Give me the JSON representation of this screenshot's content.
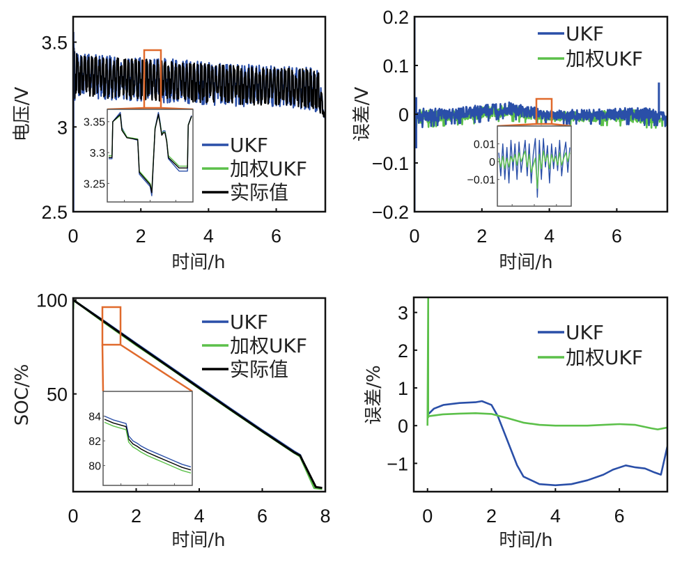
{
  "colors": {
    "ukf": "#2a4fa8",
    "weighted_ukf": "#5cc04a",
    "actual": "#000000",
    "zoom_box": "#e06a2c",
    "axis": "#111111",
    "inset_axis": "#555555"
  },
  "chart_data": [
    {
      "id": "voltage",
      "type": "line",
      "title": "",
      "xlabel": "时间/h",
      "ylabel": "电压/V",
      "xlim": [
        0,
        7.45
      ],
      "ylim": [
        2.5,
        3.65
      ],
      "xticks": [
        0,
        2,
        4,
        6
      ],
      "xtick_labels": [
        "0",
        "2",
        "4",
        "6"
      ],
      "yticks": [
        2.5,
        3,
        3.5
      ],
      "ytick_labels": [
        "2.5",
        "3",
        "3.5"
      ],
      "legend": {
        "placement": "center-right",
        "entries": [
          "UKF",
          "加权UKF",
          "实际值"
        ]
      },
      "series": [
        {
          "name": "UKF",
          "color_key": "ukf",
          "description": "pulse-discharge voltage band",
          "x": [
            0,
            0.05,
            0.1,
            1,
            2,
            3,
            4,
            5,
            6,
            7,
            7.25,
            7.45
          ],
          "upper": [
            3.56,
            3.45,
            3.44,
            3.42,
            3.41,
            3.4,
            3.38,
            3.37,
            3.36,
            3.35,
            3.33,
            3.05
          ],
          "lower": [
            2.5,
            3.15,
            3.18,
            3.16,
            3.15,
            3.14,
            3.13,
            3.12,
            3.12,
            3.1,
            3.08,
            3.05
          ]
        },
        {
          "name": "实际值",
          "color_key": "actual",
          "description": "pulse-discharge voltage band",
          "x": [
            0,
            0.05,
            0.1,
            1,
            2,
            3,
            4,
            5,
            6,
            7,
            7.25,
            7.45
          ],
          "upper": [
            3.52,
            3.44,
            3.43,
            3.41,
            3.4,
            3.39,
            3.37,
            3.36,
            3.35,
            3.34,
            3.32,
            3.05
          ],
          "lower": [
            3.2,
            3.16,
            3.19,
            3.17,
            3.16,
            3.15,
            3.14,
            3.13,
            3.13,
            3.11,
            3.09,
            3.05
          ]
        }
      ],
      "zoom_region": {
        "x": [
          2.15,
          2.6
        ],
        "y": [
          3.15,
          3.43
        ]
      },
      "inset": {
        "yticks": [
          3.25,
          3.3,
          3.35
        ],
        "ytick_labels": [
          "3.25",
          "3.3",
          "3.35"
        ],
        "ylim": [
          3.22,
          3.37
        ],
        "x": [
          0,
          0.04,
          0.05,
          0.14,
          0.16,
          0.2,
          0.22,
          0.35,
          0.37,
          0.5,
          0.52,
          0.56,
          0.6,
          0.62,
          0.64,
          0.66,
          0.68,
          0.7,
          0.72,
          0.85,
          0.87,
          0.95,
          0.96,
          1.0
        ],
        "series": [
          {
            "name": "UKF",
            "color_key": "ukf",
            "values": [
              3.29,
              3.29,
              3.35,
              3.365,
              3.34,
              3.33,
              3.325,
              3.32,
              3.265,
              3.245,
              3.23,
              3.34,
              3.365,
              3.35,
              3.33,
              3.335,
              3.335,
              3.32,
              3.29,
              3.27,
              3.27,
              3.27,
              3.345,
              3.36
            ]
          },
          {
            "name": "加权UKF",
            "color_key": "weighted_ukf",
            "values": [
              3.295,
              3.295,
              3.35,
              3.36,
              3.338,
              3.33,
              3.325,
              3.322,
              3.27,
              3.25,
              3.238,
              3.34,
              3.36,
              3.348,
              3.33,
              3.333,
              3.333,
              3.32,
              3.295,
              3.278,
              3.278,
              3.278,
              3.345,
              3.358
            ]
          },
          {
            "name": "实际值",
            "color_key": "actual",
            "values": [
              3.292,
              3.292,
              3.35,
              3.362,
              3.336,
              3.328,
              3.324,
              3.321,
              3.268,
              3.248,
              3.235,
              3.338,
              3.362,
              3.346,
              3.328,
              3.332,
              3.332,
              3.318,
              3.292,
              3.275,
              3.275,
              3.275,
              3.344,
              3.359
            ]
          }
        ]
      }
    },
    {
      "id": "voltage-error",
      "type": "line",
      "title": "",
      "xlabel": "时间/h",
      "ylabel": "误差/V",
      "xlim": [
        0,
        7.5
      ],
      "ylim": [
        -0.2,
        0.2
      ],
      "xticks": [
        0,
        2,
        4,
        6
      ],
      "xtick_labels": [
        "0",
        "2",
        "4",
        "6"
      ],
      "yticks": [
        -0.2,
        -0.1,
        0,
        0.1,
        0.2
      ],
      "ytick_labels": [
        "−0.2",
        "−0.1",
        "0",
        "0.1",
        "0.2"
      ],
      "legend": {
        "placement": "top-right",
        "entries": [
          "UKF",
          "加权UKF"
        ]
      },
      "series": [
        {
          "name": "加权UKF",
          "color_key": "weighted_ukf",
          "x": [
            0.1,
            1,
            2,
            2.7,
            3.5,
            4,
            5,
            6,
            7,
            7.2,
            7.4,
            7.5
          ],
          "upper": [
            0.01,
            0.005,
            0.015,
            0.02,
            0.01,
            0.005,
            0.005,
            0.008,
            0.01,
            0.0,
            0.0,
            -0.01
          ],
          "lower": [
            -0.02,
            -0.015,
            -0.01,
            -0.005,
            -0.01,
            -0.015,
            -0.015,
            -0.015,
            -0.02,
            -0.02,
            -0.015,
            -0.03
          ]
        },
        {
          "name": "UKF",
          "color_key": "ukf",
          "x": [
            0.1,
            1,
            2,
            2.7,
            3.5,
            4,
            5,
            6,
            7,
            7.2,
            7.4,
            7.5
          ],
          "upper": [
            0.015,
            0.01,
            0.02,
            0.028,
            0.015,
            0.008,
            0.01,
            0.012,
            0.015,
            0.005,
            0.005,
            -0.005
          ],
          "lower": [
            -0.02,
            -0.012,
            -0.008,
            0.0,
            -0.008,
            -0.012,
            -0.012,
            -0.012,
            -0.015,
            -0.015,
            -0.012,
            -0.025
          ]
        }
      ],
      "spikes": [
        {
          "name": "UKF",
          "color_key": "ukf",
          "x": 0.0,
          "y": [
            -0.2,
            0.2
          ]
        },
        {
          "name": "UKF",
          "color_key": "ukf",
          "x": 0.05,
          "y": [
            -0.07,
            0.035
          ]
        },
        {
          "name": "UKF",
          "color_key": "ukf",
          "x": 7.25,
          "y": [
            0.0,
            0.065
          ]
        }
      ],
      "zoom_region": {
        "x": [
          3.65,
          4.0
        ],
        "y": [
          -0.02,
          0.03
        ]
      },
      "inset": {
        "yticks": [
          -0.01,
          0,
          0.01
        ],
        "ytick_labels": [
          "−0.01",
          "0",
          "0.01"
        ],
        "ylim": [
          -0.025,
          0.02
        ],
        "series": [
          {
            "name": "UKF",
            "color_key": "ukf",
            "values": [
              0.005,
              -0.008,
              0.01,
              -0.01,
              0.008,
              -0.012,
              0.012,
              -0.005,
              0.01,
              -0.01,
              0.011,
              -0.006,
              0.003,
              0.012,
              -0.008,
              0.01,
              -0.012,
              0.004,
              0.013,
              -0.02,
              0.012,
              -0.01,
              0.013,
              -0.003,
              0.009,
              -0.012,
              0.01,
              -0.004,
              0.008,
              -0.005,
              0.012,
              -0.008,
              0.004,
              0.011,
              -0.006,
              0.008
            ]
          },
          {
            "name": "加权UKF",
            "color_key": "weighted_ukf",
            "values": [
              0.002,
              -0.003,
              0.003,
              -0.004,
              0.002,
              -0.003,
              0.003,
              0.0,
              0.004,
              -0.002,
              0.005,
              0.0,
              0.003,
              0.006,
              -0.003,
              0.004,
              -0.006,
              -0.002,
              0.002,
              -0.015,
              0.004,
              -0.004,
              0.006,
              0.0,
              0.004,
              -0.004,
              0.004,
              0.0,
              0.003,
              -0.002,
              0.005,
              -0.002,
              0.002,
              0.005,
              0.0,
              0.005
            ]
          }
        ]
      }
    },
    {
      "id": "soc",
      "type": "line",
      "title": "",
      "xlabel": "时间/h",
      "ylabel": "SOC/%",
      "xlim": [
        0,
        8
      ],
      "ylim": [
        -2,
        101
      ],
      "xticks": [
        0,
        2,
        4,
        6,
        8
      ],
      "xtick_labels": [
        "0",
        "2",
        "4",
        "6",
        "8"
      ],
      "yticks": [
        50,
        100
      ],
      "ytick_labels": [
        "50",
        "100"
      ],
      "legend": {
        "placement": "top-right",
        "entries": [
          "UKF",
          "加权UKF",
          "实际值"
        ]
      },
      "series": [
        {
          "name": "UKF",
          "color_key": "ukf",
          "x": [
            0,
            1,
            2,
            3,
            4,
            5,
            6,
            7,
            7.2,
            7.65,
            7.9
          ],
          "y": [
            100,
            88.5,
            76.8,
            65.2,
            53.6,
            42.0,
            30.6,
            19.5,
            17.5,
            0,
            0
          ]
        },
        {
          "name": "加权UKF",
          "color_key": "weighted_ukf",
          "x": [
            0,
            0.01,
            1,
            2,
            3,
            4,
            5,
            6,
            7,
            7.2,
            7.65,
            7.9
          ],
          "y": [
            95,
            100,
            87.8,
            76.0,
            64.6,
            53.0,
            41.4,
            30.0,
            18.8,
            16.8,
            0,
            -0.5
          ]
        },
        {
          "name": "实际值",
          "color_key": "actual",
          "x": [
            0,
            1,
            2,
            3,
            4,
            5,
            6,
            7,
            7.2,
            7.7,
            7.9
          ],
          "y": [
            100,
            88.2,
            76.4,
            64.8,
            53.2,
            41.6,
            30.2,
            19.0,
            17.2,
            0.5,
            0
          ]
        }
      ],
      "zoom_region": {
        "x": [
          1.0,
          1.5
        ],
        "y": [
          78,
          98
        ]
      },
      "inset": {
        "yticks": [
          80,
          82,
          84
        ],
        "ytick_labels": [
          "80",
          "82",
          "84"
        ],
        "ylim": [
          78.4,
          86
        ],
        "x": [
          0,
          0.1,
          0.2,
          0.25,
          0.28,
          0.33,
          0.38,
          0.42,
          0.5,
          0.6,
          0.7,
          0.8,
          0.9,
          1.0
        ],
        "series": [
          {
            "name": "UKF",
            "color_key": "ukf",
            "values": [
              84.0,
              83.7,
              83.5,
              83.4,
              82.4,
              82.0,
              81.8,
              81.6,
              81.3,
              81.0,
              80.7,
              80.4,
              80.1,
              79.9
            ]
          },
          {
            "name": "实际值",
            "color_key": "actual",
            "values": [
              83.75,
              83.45,
              83.25,
              83.15,
              82.15,
              81.75,
              81.55,
              81.35,
              81.05,
              80.75,
              80.45,
              80.15,
              79.85,
              79.65
            ]
          },
          {
            "name": "加权UKF",
            "color_key": "weighted_ukf",
            "values": [
              83.5,
              83.2,
              83.0,
              82.9,
              81.9,
              81.5,
              81.3,
              81.1,
              80.8,
              80.5,
              80.2,
              79.9,
              79.6,
              79.4
            ]
          }
        ]
      }
    },
    {
      "id": "soc-error",
      "type": "line",
      "title": "",
      "xlabel": "时间/h",
      "ylabel": "误差/%",
      "xlim": [
        -0.43,
        7.5
      ],
      "ylim": [
        -1.75,
        3.4
      ],
      "xticks": [
        0,
        2,
        4,
        6
      ],
      "xtick_labels": [
        "0",
        "2",
        "4",
        "6"
      ],
      "yticks": [
        -1,
        0,
        1,
        2,
        3
      ],
      "ytick_labels": [
        "−1",
        "0",
        "1",
        "2",
        "3"
      ],
      "legend": {
        "placement": "top-right",
        "entries": [
          "UKF",
          "加权UKF"
        ]
      },
      "series": [
        {
          "name": "UKF",
          "color_key": "ukf",
          "x": [
            0.02,
            0.2,
            0.5,
            1.0,
            1.5,
            1.7,
            2.0,
            2.2,
            2.5,
            2.8,
            3.0,
            3.5,
            4.0,
            4.5,
            5.0,
            5.5,
            5.8,
            6.2,
            6.5,
            6.8,
            7.1,
            7.3,
            7.5
          ],
          "y": [
            0.3,
            0.45,
            0.55,
            0.6,
            0.62,
            0.65,
            0.55,
            0.25,
            -0.4,
            -1.05,
            -1.35,
            -1.55,
            -1.58,
            -1.55,
            -1.45,
            -1.3,
            -1.15,
            -1.05,
            -1.1,
            -1.15,
            -1.25,
            -1.3,
            -0.55
          ]
        },
        {
          "name": "加权UKF",
          "color_key": "weighted_ukf",
          "x": [
            0.0,
            0.02,
            0.02,
            0.03,
            0.5,
            1.0,
            1.5,
            2.0,
            2.5,
            3.0,
            3.5,
            4.0,
            5.0,
            5.5,
            6.0,
            6.5,
            7.0,
            7.2,
            7.5
          ],
          "y": [
            0.0,
            3.4,
            0.22,
            0.25,
            0.3,
            0.32,
            0.33,
            0.31,
            0.2,
            0.08,
            0.02,
            0.0,
            0.0,
            0.02,
            0.04,
            0.02,
            -0.07,
            -0.1,
            -0.05
          ]
        }
      ]
    }
  ]
}
